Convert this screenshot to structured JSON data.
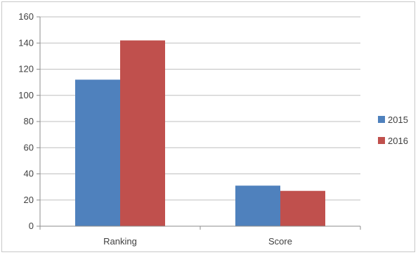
{
  "chart_data": {
    "type": "bar",
    "categories": [
      "Ranking",
      "Score"
    ],
    "series": [
      {
        "name": "2015",
        "values": [
          112,
          31
        ],
        "color": "#4f81bd"
      },
      {
        "name": "2016",
        "values": [
          142,
          27
        ],
        "color": "#c0504d"
      }
    ],
    "y_ticks": [
      "0",
      "20",
      "40",
      "60",
      "80",
      "100",
      "120",
      "140",
      "160"
    ],
    "ylim": [
      0,
      160
    ],
    "grid": true,
    "legend_position": "right",
    "title": "",
    "xlabel": "",
    "ylabel": ""
  }
}
